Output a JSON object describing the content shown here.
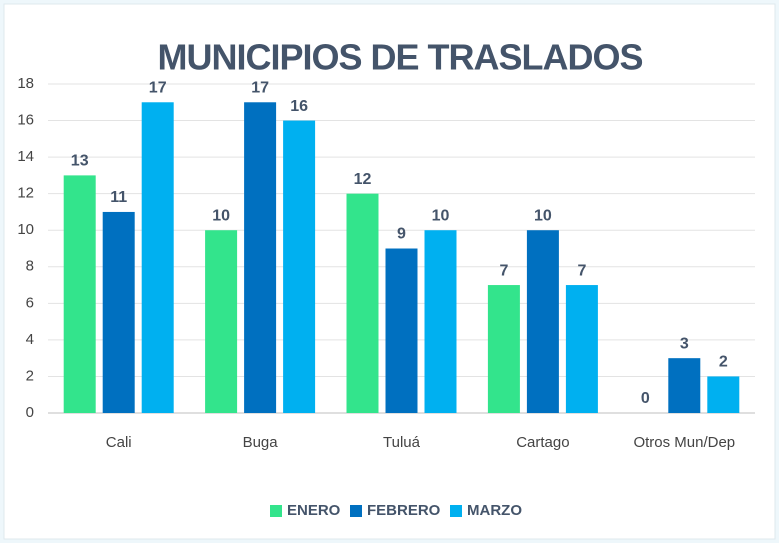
{
  "chart_data": {
    "type": "bar",
    "title": "MUNICIPIOS DE TRASLADOS",
    "categories": [
      "Cali",
      "Buga",
      "Tuluá",
      "Cartago",
      "Otros Mun/Dep"
    ],
    "series": [
      {
        "name": "ENERO",
        "color": "#33e48c",
        "values": [
          13,
          10,
          12,
          7,
          0
        ]
      },
      {
        "name": "FEBRERO",
        "color": "#0070c0",
        "values": [
          11,
          17,
          9,
          10,
          3
        ]
      },
      {
        "name": "MARZO",
        "color": "#00b0f0",
        "values": [
          17,
          16,
          10,
          7,
          2
        ]
      }
    ],
    "ylim": [
      0,
      18
    ],
    "yticks": [
      0,
      2,
      4,
      6,
      8,
      10,
      12,
      14,
      16,
      18
    ],
    "grid": true,
    "legend": "bottom"
  }
}
